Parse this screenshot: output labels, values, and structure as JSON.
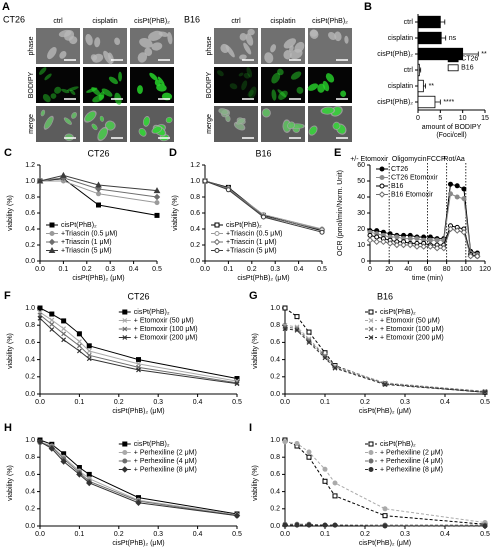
{
  "micrographs": [
    {
      "panel": "A",
      "title": "CT26",
      "columns": [
        "ctrl",
        "cisplatin",
        "cisPt(PhB)₂"
      ],
      "rows": [
        "phase",
        "BODIPY",
        "merge"
      ]
    },
    {
      "title": "B16",
      "columns": [
        "ctrl",
        "cisplatin",
        "cisPt(PhB)₂"
      ],
      "rows": [
        "phase",
        "BODIPY",
        "merge"
      ]
    }
  ],
  "chart_data": [
    {
      "type": "hbar",
      "panel": "B",
      "categories": [
        "ctrl",
        "cisplatin",
        "cisPt(PhB)₂",
        "ctrl",
        "cisplatin",
        "cisPt(PhB)₂"
      ],
      "series": [
        {
          "name": "CT26",
          "color": "#000000",
          "values": [
            5.0,
            5.2,
            10.0,
            null,
            null,
            null
          ],
          "errors": [
            1.0,
            1.0,
            3.5,
            null,
            null,
            null
          ]
        },
        {
          "name": "B16",
          "color": "#ffffff",
          "values": [
            null,
            null,
            null,
            0.3,
            1.2,
            3.8
          ],
          "errors": [
            null,
            null,
            null,
            0.3,
            0.5,
            1.2
          ]
        }
      ],
      "annotations": [
        null,
        "ns",
        "**",
        null,
        "**",
        "****"
      ],
      "xlabel": [
        "amount of BODIPY",
        "(Foci/cell)"
      ],
      "xlim": [
        0,
        15
      ],
      "xticks": [
        0,
        5,
        10,
        15
      ],
      "legend": "center right"
    },
    {
      "type": "line",
      "panel": "C",
      "title": "CT26",
      "xlabel": "cisPt(PhB)₂ (μM)",
      "ylabel": "viability (%)",
      "x": [
        0,
        0.1,
        0.25,
        0.5
      ],
      "series": [
        {
          "name": "cisPt(PhB)₂",
          "color": "#000000",
          "marker": "square",
          "filled": true,
          "dash": false,
          "values": [
            1.0,
            1.03,
            0.7,
            0.57
          ]
        },
        {
          "name": "+Triascin (0.5 μM)",
          "color": "#9a9a9a",
          "marker": "circle",
          "filled": true,
          "dash": false,
          "values": [
            1.0,
            1.0,
            0.84,
            0.73
          ]
        },
        {
          "name": "+Triascin (1 μM)",
          "color": "#6e6e6e",
          "marker": "diamond",
          "filled": true,
          "dash": false,
          "values": [
            1.0,
            1.04,
            0.9,
            0.8
          ]
        },
        {
          "name": "+Triascin (5 μM)",
          "color": "#3c3c3c",
          "marker": "triangle",
          "filled": true,
          "dash": false,
          "values": [
            1.0,
            1.07,
            0.95,
            0.88
          ]
        }
      ],
      "xlim": [
        0,
        0.5
      ],
      "xticks": [
        {
          "value": 0,
          "label": "0.0"
        },
        0.1,
        0.2,
        0.3,
        0.4,
        0.5
      ],
      "ylim": [
        0,
        1.2
      ],
      "yticks": [
        {
          "value": 0,
          "label": "0.0"
        },
        0.2,
        0.4,
        0.6,
        0.8,
        {
          "value": 1,
          "label": "1.0"
        },
        1.2
      ],
      "legend": "lower left"
    },
    {
      "type": "line",
      "panel": "D",
      "title": "B16",
      "xlabel": "cisPt(PhB)₂ (μM)",
      "ylabel": "viability (%)",
      "x": [
        0,
        0.1,
        0.25,
        0.5
      ],
      "series": [
        {
          "name": "cisPt(PhB)₂",
          "color": "#000000",
          "marker": "square",
          "filled": false,
          "dash": false,
          "values": [
            1.0,
            0.92,
            0.57,
            0.38
          ]
        },
        {
          "name": "+Triascin (0.5 μM)",
          "color": "#9a9a9a",
          "marker": "circle",
          "filled": false,
          "dash": false,
          "values": [
            1.0,
            0.9,
            0.58,
            0.4
          ]
        },
        {
          "name": "+Triascin (1 μM)",
          "color": "#6e6e6e",
          "marker": "diamond",
          "filled": false,
          "dash": false,
          "values": [
            1.0,
            0.91,
            0.56,
            0.39
          ]
        },
        {
          "name": "+Triascin (5 μM)",
          "color": "#3c3c3c",
          "marker": "circle",
          "filled": false,
          "dash": false,
          "values": [
            1.0,
            0.89,
            0.55,
            0.36
          ]
        }
      ],
      "xlim": [
        0,
        0.5
      ],
      "xticks": [
        {
          "value": 0,
          "label": "0.0"
        },
        0.1,
        0.2,
        0.3,
        0.4,
        0.5
      ],
      "ylim": [
        0,
        1.2
      ],
      "yticks": [
        {
          "value": 0,
          "label": "0.0"
        },
        0.2,
        0.4,
        0.6,
        0.8,
        {
          "value": 1,
          "label": "1.0"
        },
        1.2
      ],
      "legend": "lower left"
    },
    {
      "type": "line",
      "panel": "E",
      "xlabel": "time (min)",
      "ylabel": "OCR (pmol/min/Norm. Unit)",
      "x": [
        0,
        7,
        14,
        21,
        28,
        35,
        42,
        49,
        56,
        63,
        70,
        77,
        84,
        91,
        98,
        105,
        112
      ],
      "series": [
        {
          "name": "CT26",
          "color": "#000000",
          "marker": "circle",
          "filled": true,
          "dash": false,
          "values": [
            19,
            19,
            18,
            17,
            16,
            16,
            16,
            15,
            15,
            15,
            14,
            14,
            48,
            47,
            45,
            6,
            5
          ]
        },
        {
          "name": "CT26 Etomoxir",
          "color": "#8a8a8a",
          "marker": "circle",
          "filled": true,
          "dash": false,
          "values": [
            18,
            17,
            16,
            15,
            15,
            14,
            14,
            14,
            13,
            13,
            13,
            13,
            42,
            40,
            39,
            5,
            4
          ]
        },
        {
          "name": "B16",
          "color": "#000000",
          "marker": "circle",
          "filled": false,
          "dash": false,
          "values": [
            16,
            15,
            14,
            13,
            12,
            12,
            11,
            11,
            11,
            10,
            10,
            10,
            22,
            21,
            20,
            4,
            3
          ]
        },
        {
          "name": "B16 Etomoxir",
          "color": "#6e6e6e",
          "marker": "diamond",
          "filled": false,
          "dash": false,
          "values": [
            13,
            12,
            12,
            11,
            10,
            10,
            10,
            9,
            9,
            9,
            8,
            8,
            20,
            19,
            18,
            3,
            3
          ]
        }
      ],
      "events": [
        {
          "x": 20,
          "label": "+/- Etomoxir"
        },
        {
          "x": 60,
          "label": "Oligomycin"
        },
        {
          "x": 80,
          "label": "FCCP"
        },
        {
          "x": 100,
          "label": "Rot/Aa"
        }
      ],
      "xlim": [
        0,
        120
      ],
      "xticks": [
        0,
        20,
        40,
        60,
        80,
        100,
        120
      ],
      "ylim": [
        0,
        60
      ],
      "yticks": [
        0,
        10,
        20,
        30,
        40,
        50,
        60
      ],
      "legend": "upper left"
    },
    {
      "type": "line",
      "panel": "F",
      "title": "CT26",
      "xlabel": "cisPt(PhB)₂ (μM)",
      "ylabel": "viability (%)",
      "x": [
        0,
        0.03,
        0.06,
        0.1,
        0.125,
        0.25,
        0.5
      ],
      "series": [
        {
          "name": "cisPt(PhB)₂",
          "color": "#000000",
          "marker": "square",
          "filled": true,
          "dash": false,
          "values": [
            1.0,
            0.93,
            0.85,
            0.7,
            0.56,
            0.4,
            0.18
          ]
        },
        {
          "name": "+ Etomoxir (50 μM)",
          "color": "#aaaaaa",
          "marker": "cross",
          "filled": true,
          "dash": false,
          "values": [
            0.95,
            0.86,
            0.76,
            0.61,
            0.5,
            0.35,
            0.15
          ]
        },
        {
          "name": "+ Etomoxir (100 μM)",
          "color": "#6e6e6e",
          "marker": "cross",
          "filled": true,
          "dash": false,
          "values": [
            0.92,
            0.81,
            0.7,
            0.56,
            0.45,
            0.31,
            0.13
          ]
        },
        {
          "name": "+ Etomoxir (200 μM)",
          "color": "#333333",
          "marker": "cross",
          "filled": true,
          "dash": false,
          "values": [
            0.88,
            0.75,
            0.63,
            0.5,
            0.41,
            0.28,
            0.12
          ]
        }
      ],
      "xlim": [
        0,
        0.5
      ],
      "xticks": [
        {
          "value": 0,
          "label": "0.0"
        },
        0.1,
        0.2,
        0.3,
        0.4,
        0.5
      ],
      "ylim": [
        0,
        1
      ],
      "yticks": [
        {
          "value": 0,
          "label": "0.0"
        },
        0.2,
        0.4,
        0.6,
        0.8,
        {
          "value": 1,
          "label": "1.0"
        }
      ],
      "legend": "upper right"
    },
    {
      "type": "line",
      "panel": "G",
      "title": "B16",
      "xlabel": "cisPt(PhB)₂ (μM)",
      "ylabel": "viability (%)",
      "x": [
        0,
        0.03,
        0.06,
        0.1,
        0.125,
        0.25,
        0.5
      ],
      "series": [
        {
          "name": "cisPt(PhB)₂",
          "color": "#000000",
          "marker": "square",
          "filled": false,
          "dash": true,
          "values": [
            1.0,
            0.9,
            0.72,
            0.48,
            0.33,
            0.12,
            0.02
          ]
        },
        {
          "name": "+ Etomoxir (50 μM)",
          "color": "#aaaaaa",
          "marker": "cross",
          "filled": true,
          "dash": true,
          "values": [
            0.8,
            0.78,
            0.64,
            0.45,
            0.32,
            0.13,
            0.03
          ]
        },
        {
          "name": "+ Etomoxir (100 μM)",
          "color": "#6e6e6e",
          "marker": "cross",
          "filled": true,
          "dash": true,
          "values": [
            0.78,
            0.76,
            0.62,
            0.44,
            0.31,
            0.12,
            0.03
          ]
        },
        {
          "name": "+ Etomoxir (200 μM)",
          "color": "#333333",
          "marker": "cross",
          "filled": true,
          "dash": true,
          "values": [
            0.76,
            0.74,
            0.6,
            0.42,
            0.3,
            0.11,
            0.02
          ]
        }
      ],
      "xlim": [
        0,
        0.5
      ],
      "xticks": [
        {
          "value": 0,
          "label": "0.0"
        },
        0.1,
        0.2,
        0.3,
        0.4,
        0.5
      ],
      "ylim": [
        0,
        1
      ],
      "yticks": [
        {
          "value": 0,
          "label": "0.0"
        },
        0.2,
        0.4,
        0.6,
        0.8,
        {
          "value": 1,
          "label": "1.0"
        }
      ],
      "legend": "upper right"
    },
    {
      "type": "line",
      "panel": "H",
      "xlabel": "cisPt(PhB)₂ (μM)",
      "ylabel": "viability (%)",
      "x": [
        0,
        0.03,
        0.06,
        0.1,
        0.125,
        0.25,
        0.5
      ],
      "series": [
        {
          "name": "cisPt(PhB)₂",
          "color": "#000000",
          "marker": "square",
          "filled": true,
          "dash": false,
          "values": [
            1.0,
            0.95,
            0.84,
            0.68,
            0.6,
            0.33,
            0.14
          ]
        },
        {
          "name": "+ Perhexiline (2 μM)",
          "color": "#aaaaaa",
          "marker": "circle",
          "filled": true,
          "dash": false,
          "values": [
            0.98,
            0.93,
            0.8,
            0.64,
            0.55,
            0.3,
            0.13
          ]
        },
        {
          "name": "+ Perhexiline (4 μM)",
          "color": "#6e6e6e",
          "marker": "circle",
          "filled": true,
          "dash": false,
          "values": [
            0.97,
            0.92,
            0.78,
            0.62,
            0.52,
            0.29,
            0.12
          ]
        },
        {
          "name": "+ Perhexiline (8 μM)",
          "color": "#333333",
          "marker": "diamond",
          "filled": true,
          "dash": false,
          "values": [
            0.98,
            0.9,
            0.75,
            0.6,
            0.5,
            0.27,
            0.12
          ]
        }
      ],
      "xlim": [
        0,
        0.5
      ],
      "xticks": [
        {
          "value": 0,
          "label": "0.0"
        },
        0.1,
        0.2,
        0.3,
        0.4,
        0.5
      ],
      "ylim": [
        0,
        1
      ],
      "yticks": [
        {
          "value": 0,
          "label": "0.0"
        },
        0.2,
        0.4,
        0.6,
        0.8,
        {
          "value": 1,
          "label": "1.0"
        }
      ],
      "legend": "upper right"
    },
    {
      "type": "line",
      "panel": "I",
      "xlabel": "cisPt(PhB)₂ (μM)",
      "ylabel": "viability (%)",
      "x": [
        0,
        0.03,
        0.06,
        0.1,
        0.125,
        0.25,
        0.5
      ],
      "series": [
        {
          "name": "cisPt(PhB)₂",
          "color": "#000000",
          "marker": "square",
          "filled": false,
          "dash": true,
          "values": [
            1.0,
            0.93,
            0.8,
            0.52,
            0.35,
            0.12,
            0.02
          ]
        },
        {
          "name": "+ Perhexiline (2 μM)",
          "color": "#aaaaaa",
          "marker": "circle",
          "filled": true,
          "dash": true,
          "values": [
            0.98,
            0.96,
            0.86,
            0.66,
            0.5,
            0.2,
            0.04
          ]
        },
        {
          "name": "+ Perhexiline (4 μM)",
          "color": "#6e6e6e",
          "marker": "circle",
          "filled": true,
          "dash": true,
          "values": [
            0.02,
            0.02,
            0.02,
            0.01,
            0.01,
            0.01,
            0.01
          ]
        },
        {
          "name": "+ Perhexiline (8 μM)",
          "color": "#333333",
          "marker": "circle",
          "filled": true,
          "dash": true,
          "values": [
            0.01,
            0.01,
            0.01,
            0.01,
            0.01,
            0.0,
            0.0
          ]
        }
      ],
      "xlim": [
        0,
        0.5
      ],
      "xticks": [
        {
          "value": 0,
          "label": "0.0"
        },
        0.1,
        0.2,
        0.3,
        0.4,
        0.5
      ],
      "ylim": [
        0,
        1
      ],
      "yticks": [
        {
          "value": 0,
          "label": "0.0"
        },
        0.2,
        0.4,
        0.6,
        0.8,
        {
          "value": 1,
          "label": "1.0"
        }
      ],
      "legend": "upper right"
    }
  ]
}
